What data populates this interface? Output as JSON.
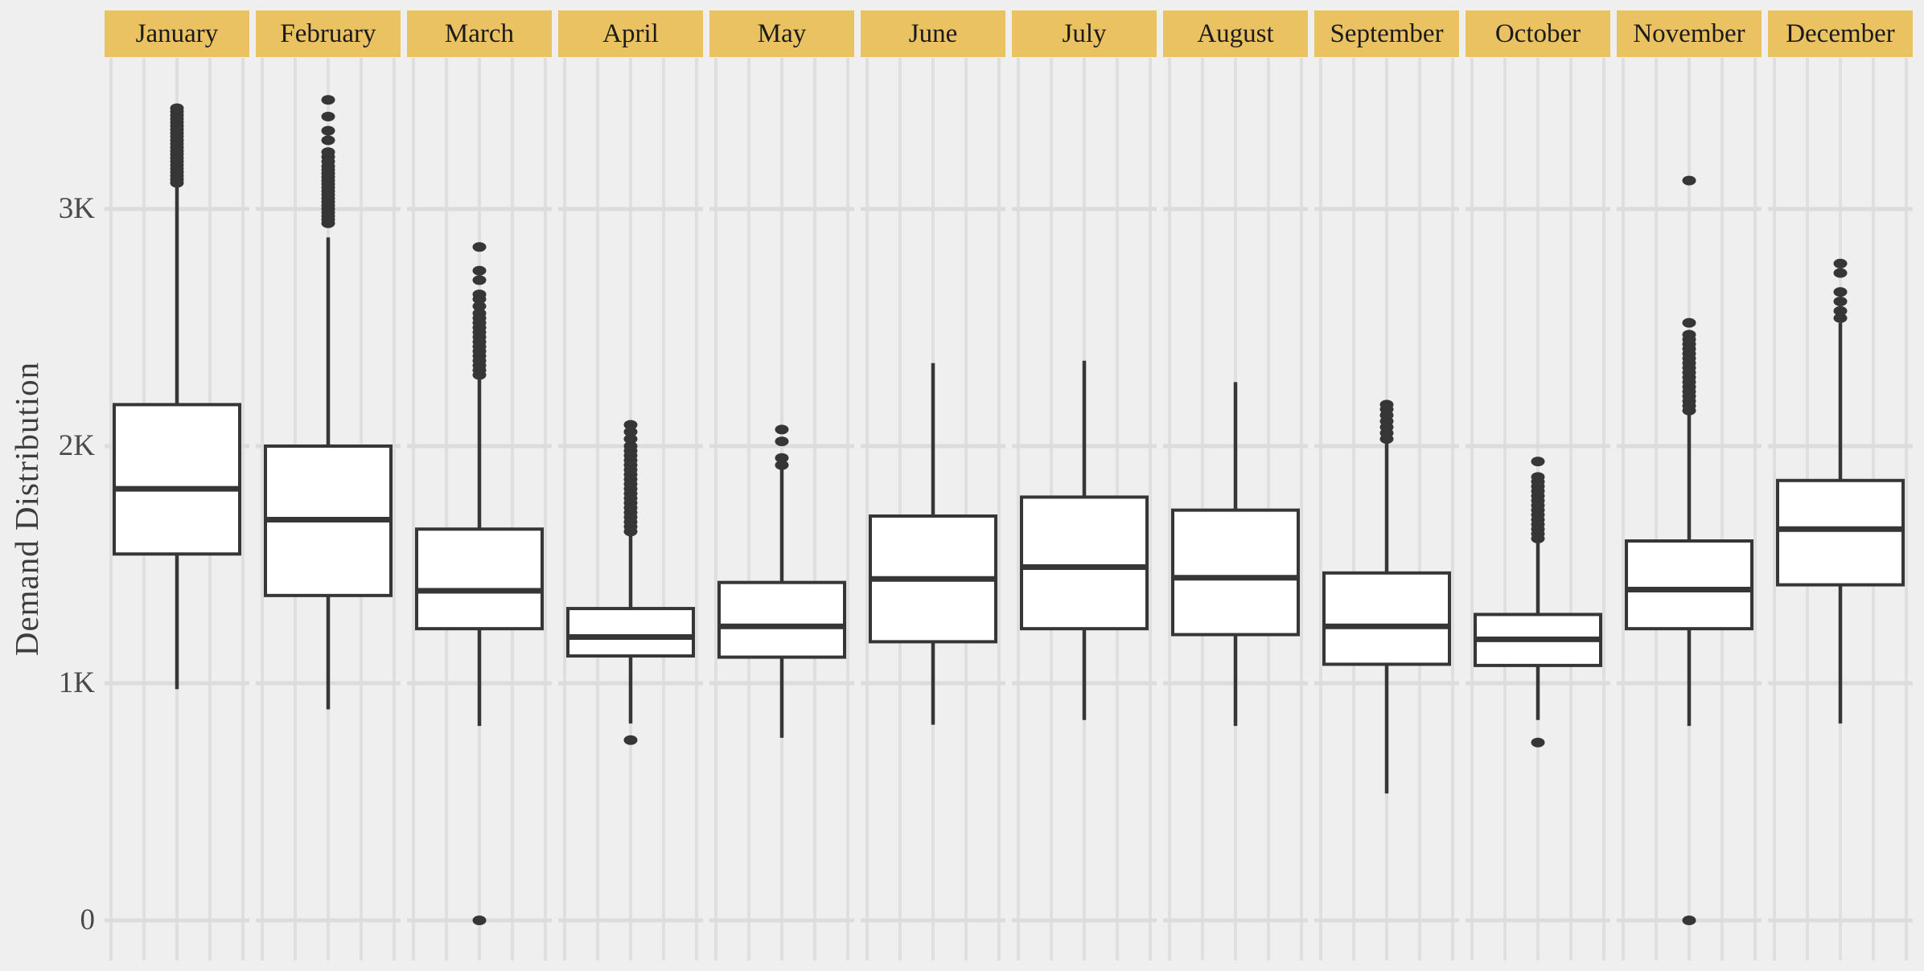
{
  "style": {
    "background": "#efeff0",
    "header_fill": "#ebc262",
    "header_text": "#1b1b1b",
    "mark_color": "#363636",
    "box_fill": "#ffffff",
    "grid_vertical": "#dfdfe0",
    "grid_horizontal": "#dcdcdc",
    "axis_text": "#4a4a4a",
    "axis_title_text": "#3d3d3d"
  },
  "chart_data": {
    "type": "box",
    "title": "",
    "xlabel": "",
    "ylabel": "Demand Distribution",
    "ylim": [
      0,
      3550
    ],
    "grid": true,
    "legend": false,
    "y_ticks": [
      {
        "value": 0,
        "label": "0"
      },
      {
        "value": 1000,
        "label": "1K"
      },
      {
        "value": 2000,
        "label": "2K"
      },
      {
        "value": 3000,
        "label": "3K"
      }
    ],
    "categories": [
      "January",
      "February",
      "March",
      "April",
      "May",
      "June",
      "July",
      "August",
      "September",
      "October",
      "November",
      "December"
    ],
    "series": [
      {
        "label": "January",
        "whisker_low": 975,
        "q1": 1545,
        "median": 1820,
        "q3": 2175,
        "whisker_high": 3100,
        "outliers_high": [
          3110,
          3125,
          3140,
          3155,
          3170,
          3185,
          3200,
          3215,
          3230,
          3245,
          3260,
          3275,
          3290,
          3305,
          3320,
          3335,
          3350,
          3365,
          3380,
          3395,
          3410,
          3425
        ],
        "outliers_low": []
      },
      {
        "label": "February",
        "whisker_low": 890,
        "q1": 1370,
        "median": 1690,
        "q3": 2000,
        "whisker_high": 2880,
        "outliers_high": [
          2940,
          2955,
          2970,
          2985,
          3000,
          3015,
          3030,
          3045,
          3060,
          3075,
          3090,
          3105,
          3120,
          3135,
          3150,
          3165,
          3180,
          3200,
          3220,
          3240,
          3290,
          3330,
          3390,
          3460
        ],
        "outliers_low": []
      },
      {
        "label": "March",
        "whisker_low": 820,
        "q1": 1230,
        "median": 1390,
        "q3": 1650,
        "whisker_high": 2290,
        "outliers_high": [
          2300,
          2320,
          2340,
          2360,
          2380,
          2400,
          2420,
          2440,
          2460,
          2480,
          2500,
          2520,
          2540,
          2560,
          2590,
          2620,
          2640,
          2700,
          2740,
          2840
        ],
        "outliers_low": [
          0
        ]
      },
      {
        "label": "April",
        "whisker_low": 830,
        "q1": 1115,
        "median": 1195,
        "q3": 1315,
        "whisker_high": 1630,
        "outliers_high": [
          1640,
          1660,
          1680,
          1700,
          1720,
          1740,
          1760,
          1780,
          1800,
          1820,
          1840,
          1860,
          1880,
          1900,
          1920,
          1940,
          1960,
          1980,
          2000,
          2030,
          2060,
          2090
        ],
        "outliers_low": [
          760
        ]
      },
      {
        "label": "May",
        "whisker_low": 770,
        "q1": 1110,
        "median": 1240,
        "q3": 1425,
        "whisker_high": 1910,
        "outliers_high": [
          1920,
          1950,
          2020,
          2070
        ],
        "outliers_low": []
      },
      {
        "label": "June",
        "whisker_low": 825,
        "q1": 1175,
        "median": 1440,
        "q3": 1705,
        "whisker_high": 2350,
        "outliers_high": [],
        "outliers_low": []
      },
      {
        "label": "July",
        "whisker_low": 845,
        "q1": 1230,
        "median": 1490,
        "q3": 1785,
        "whisker_high": 2360,
        "outliers_high": [],
        "outliers_low": []
      },
      {
        "label": "August",
        "whisker_low": 820,
        "q1": 1205,
        "median": 1445,
        "q3": 1730,
        "whisker_high": 2270,
        "outliers_high": [],
        "outliers_low": []
      },
      {
        "label": "September",
        "whisker_low": 535,
        "q1": 1080,
        "median": 1240,
        "q3": 1465,
        "whisker_high": 2020,
        "outliers_high": [
          2030,
          2055,
          2080,
          2105,
          2130,
          2155,
          2175
        ],
        "outliers_low": []
      },
      {
        "label": "October",
        "whisker_low": 845,
        "q1": 1075,
        "median": 1185,
        "q3": 1290,
        "whisker_high": 1595,
        "outliers_high": [
          1610,
          1630,
          1650,
          1670,
          1690,
          1710,
          1730,
          1750,
          1770,
          1790,
          1810,
          1830,
          1850,
          1870,
          1935
        ],
        "outliers_low": [
          750
        ]
      },
      {
        "label": "November",
        "whisker_low": 820,
        "q1": 1230,
        "median": 1395,
        "q3": 1600,
        "whisker_high": 2140,
        "outliers_high": [
          2150,
          2170,
          2190,
          2210,
          2230,
          2250,
          2270,
          2290,
          2310,
          2330,
          2350,
          2370,
          2390,
          2410,
          2430,
          2450,
          2470,
          2520,
          3120
        ],
        "outliers_low": [
          0
        ]
      },
      {
        "label": "December",
        "whisker_low": 830,
        "q1": 1415,
        "median": 1650,
        "q3": 1855,
        "whisker_high": 2520,
        "outliers_high": [
          2540,
          2570,
          2610,
          2650,
          2730,
          2770
        ],
        "outliers_low": []
      }
    ]
  }
}
